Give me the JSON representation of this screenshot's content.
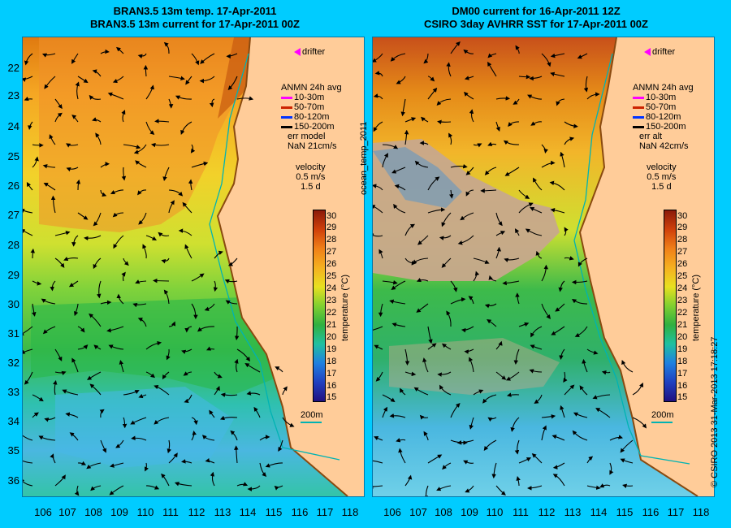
{
  "titles": {
    "left": [
      "BRAN3.5 13m temp. 17-Apr-2011",
      "BRAN3.5 13m current for 17-Apr-2011 00Z"
    ],
    "right": [
      "DM00 current for 16-Apr-2011 12Z",
      "CSIRO 3day AVHRR SST for 17-Apr-2011 00Z"
    ]
  },
  "latitude_labels": [
    "22",
    "23",
    "24",
    "25",
    "26",
    "27",
    "28",
    "29",
    "30",
    "31",
    "32",
    "33",
    "34",
    "35",
    "36"
  ],
  "longitude_labels": [
    "106",
    "107",
    "108",
    "109",
    "110",
    "111",
    "112",
    "113",
    "114",
    "115",
    "116",
    "117",
    "118"
  ],
  "left_panel": {
    "drifter": "drifter",
    "legend_title": "ANMN 24h avg",
    "legend_items": [
      {
        "label": "10-30m",
        "color": "#ff00ff"
      },
      {
        "label": "50-70m",
        "color": "#cc2200"
      },
      {
        "label": "80-120m",
        "color": "#0033ff"
      },
      {
        "label": "150-200m",
        "color": "#000000"
      }
    ],
    "err_label": "err model",
    "nan_label": "NaN 21cm/s",
    "velocity_label": "velocity",
    "velocity_value": "0.5 m/s",
    "velocity_days": "1.5 d",
    "scale_bar": "200m",
    "colorbar_title": "temperature (°C)"
  },
  "right_panel": {
    "drifter": "drifter",
    "legend_title": "ANMN 24h avg",
    "legend_items": [
      {
        "label": "10-30m",
        "color": "#ff00ff"
      },
      {
        "label": "50-70m",
        "color": "#cc2200"
      },
      {
        "label": "80-120m",
        "color": "#0033ff"
      },
      {
        "label": "150-200m",
        "color": "#000000"
      }
    ],
    "err_label": "err alt",
    "nan_label": "NaN 42cm/s",
    "velocity_label": "velocity",
    "velocity_value": "0.5 m/s",
    "velocity_days": "1.5 d",
    "scale_bar": "200m",
    "colorbar_title": "temperature (°C)"
  },
  "colorbar_ticks": [
    "30",
    "29",
    "28",
    "27",
    "26",
    "25",
    "24",
    "23",
    "22",
    "21",
    "20",
    "19",
    "18",
    "17",
    "16",
    "15"
  ],
  "side_label_middle": "ocean_temp_2011",
  "side_label_right": "© CSIRO 2013   31-Mar-2013 17:18:27",
  "colors": {
    "background": "#00ccff",
    "land": "#ffcc99",
    "coast_line": "#00b3b3",
    "drifter_marker": "#ff00ff"
  }
}
